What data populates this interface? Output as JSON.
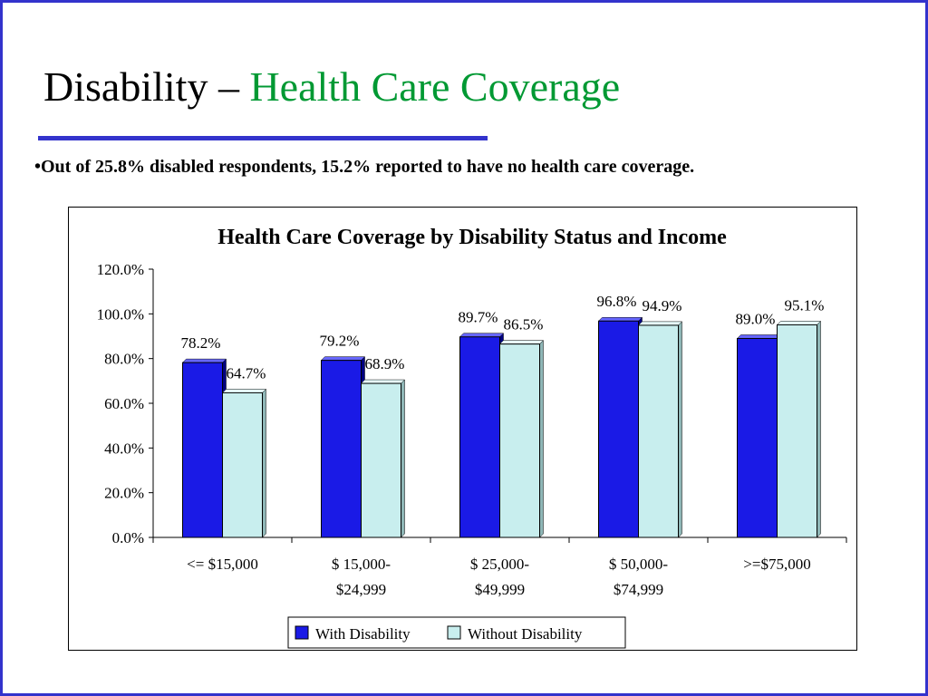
{
  "slide": {
    "title_main": "Disability – ",
    "title_accent": "Health Care Coverage",
    "bullet": "•Out of 25.8% disabled respondents, 15.2% reported to have no health care coverage."
  },
  "colors": {
    "frame": "#3333cc",
    "title_accent": "#009933",
    "rule": "#3333cc"
  },
  "chart_data": {
    "type": "bar",
    "title": "Health Care Coverage by Disability Status and Income",
    "categories": [
      [
        "<= $15,000"
      ],
      [
        "$ 15,000-",
        "$24,999"
      ],
      [
        "$ 25,000-",
        "$49,999"
      ],
      [
        "$ 50,000-",
        "$74,999"
      ],
      [
        ">=$75,000"
      ]
    ],
    "series": [
      {
        "name": "With Disability",
        "color": "#1a1ae6",
        "values": [
          78.2,
          79.2,
          89.7,
          96.8,
          89.0
        ],
        "labels": [
          "78.2%",
          "79.2%",
          "89.7%",
          "96.8%",
          "89.0%"
        ]
      },
      {
        "name": "Without Disability",
        "color": "#c8eeee",
        "values": [
          64.7,
          68.9,
          86.5,
          94.9,
          95.1
        ],
        "labels": [
          "64.7%",
          "68.9%",
          "86.5%",
          "94.9%",
          "95.1%"
        ]
      }
    ],
    "ylim": [
      0,
      120
    ],
    "yticks": [
      "0.0%",
      "20.0%",
      "40.0%",
      "60.0%",
      "80.0%",
      "100.0%",
      "120.0%"
    ],
    "legend": "bottom",
    "grid": false
  }
}
